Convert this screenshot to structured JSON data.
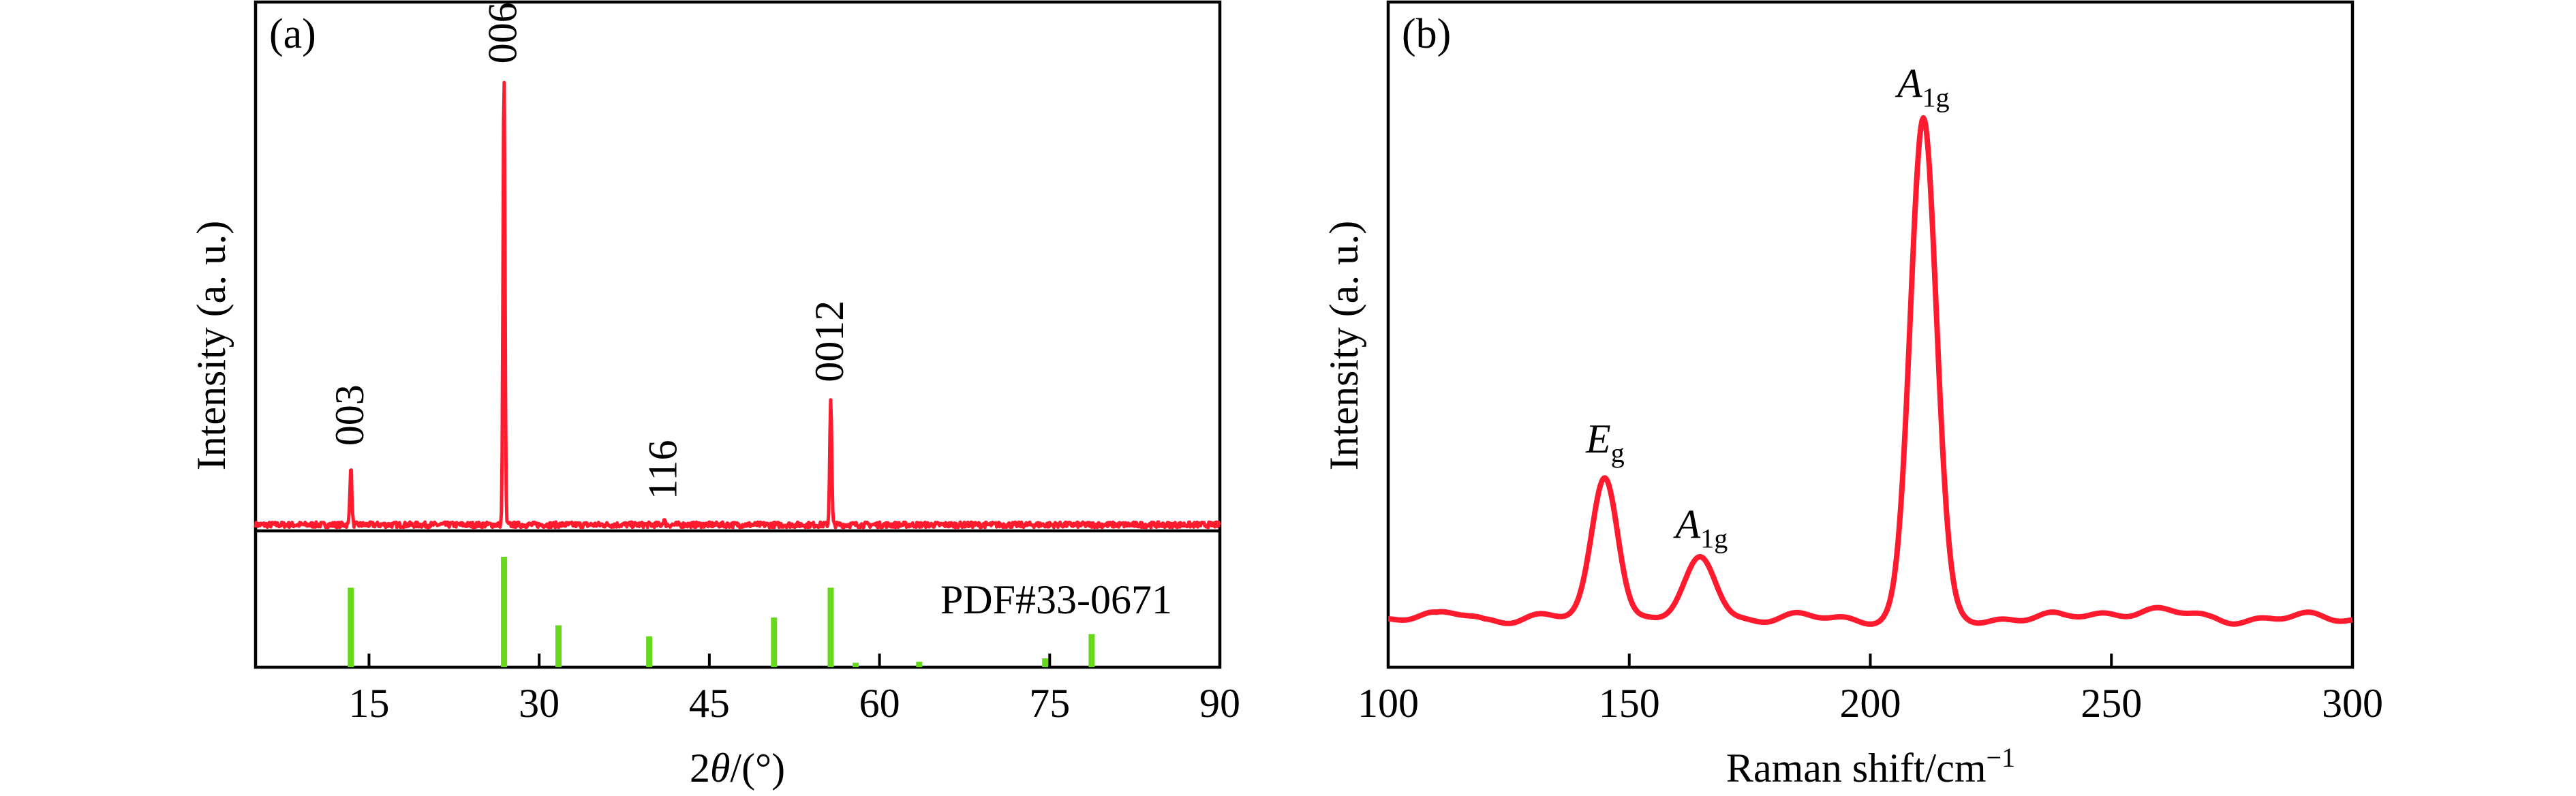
{
  "colors": {
    "xrd_line": "#ff1a2e",
    "ref_bars": "#66d91a",
    "raman_line": "#ff1a2e",
    "axis": "#000000"
  },
  "chart_data": [
    {
      "type": "line",
      "panel_label": "(a)",
      "xlabel_prefix": "2",
      "xlabel_theta": "θ",
      "xlabel_suffix": "/(°)",
      "ylabel": "Intensity (a. u.)",
      "xlim": [
        5,
        90
      ],
      "xticks": [
        15,
        30,
        45,
        60,
        75,
        90
      ],
      "ylim": [
        -0.3,
        1.0
      ],
      "series": [
        {
          "peaks": [
            {
              "x": 13.4,
              "y": 0.128,
              "label": "003"
            },
            {
              "x": 26.9,
              "y": 0.995,
              "label": "006"
            },
            {
              "x": 41.0,
              "y": 0.01,
              "label": "116"
            },
            {
              "x": 55.7,
              "y": 0.275,
              "label": "0012"
            }
          ]
        }
      ],
      "reference": {
        "name": "PDF#33-0671",
        "bars": [
          {
            "x": 13.4,
            "y": 0.72
          },
          {
            "x": 26.9,
            "y": 1.0
          },
          {
            "x": 31.7,
            "y": 0.38
          },
          {
            "x": 39.7,
            "y": 0.28
          },
          {
            "x": 50.7,
            "y": 0.45
          },
          {
            "x": 55.7,
            "y": 0.72
          },
          {
            "x": 57.9,
            "y": 0.04
          },
          {
            "x": 63.5,
            "y": 0.05
          },
          {
            "x": 74.6,
            "y": 0.08
          },
          {
            "x": 78.7,
            "y": 0.3
          }
        ]
      }
    },
    {
      "type": "line",
      "panel_label": "(b)",
      "xlabel": "Raman shift/cm",
      "xlabel_sup": "−1",
      "ylabel": "Intensity (a. u.)",
      "xlim": [
        100,
        300
      ],
      "xticks": [
        100,
        150,
        200,
        250,
        300
      ],
      "ylim": [
        0,
        1.0
      ],
      "baseline": 0.08,
      "series": [
        {
          "peaks": [
            {
              "x": 145,
              "y": 0.315,
              "width": 3.8,
              "label_main": "E",
              "label_sub": "g"
            },
            {
              "x": 165,
              "y": 0.175,
              "width": 4.5,
              "label_main": "A",
              "label_sub": "1g"
            },
            {
              "x": 211,
              "y": 0.895,
              "width": 3.8,
              "label_main": "A",
              "label_sub": "1g"
            }
          ]
        }
      ]
    }
  ]
}
